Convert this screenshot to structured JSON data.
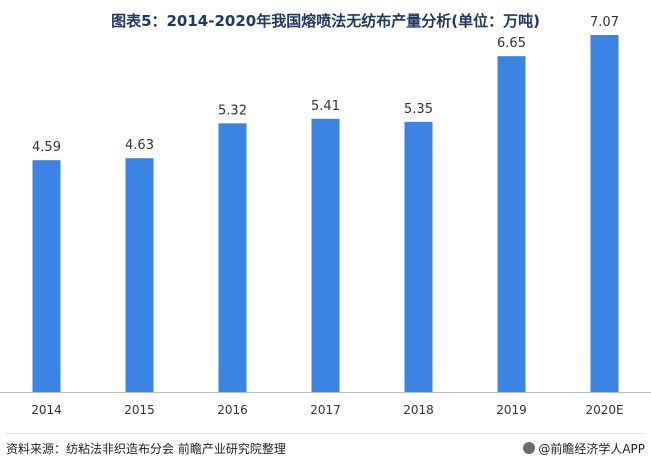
{
  "chart_data": {
    "type": "bar",
    "title": "图表5：2014-2020年我国熔喷法无纺布产量分析(单位：万吨)",
    "categories": [
      "2014",
      "2015",
      "2016",
      "2017",
      "2018",
      "2019",
      "2020E"
    ],
    "values": [
      4.59,
      4.63,
      5.32,
      5.41,
      5.35,
      6.65,
      7.07
    ],
    "ylim": [
      0,
      8
    ],
    "grid": false,
    "legend": "none",
    "bar_color": "#3b84e3",
    "axis_color": "#bfbfbf"
  },
  "footer": {
    "source": "资料来源：纺粘法非织造布分会  前瞻产业研究院整理",
    "brand": "@前瞻经济学人APP"
  }
}
